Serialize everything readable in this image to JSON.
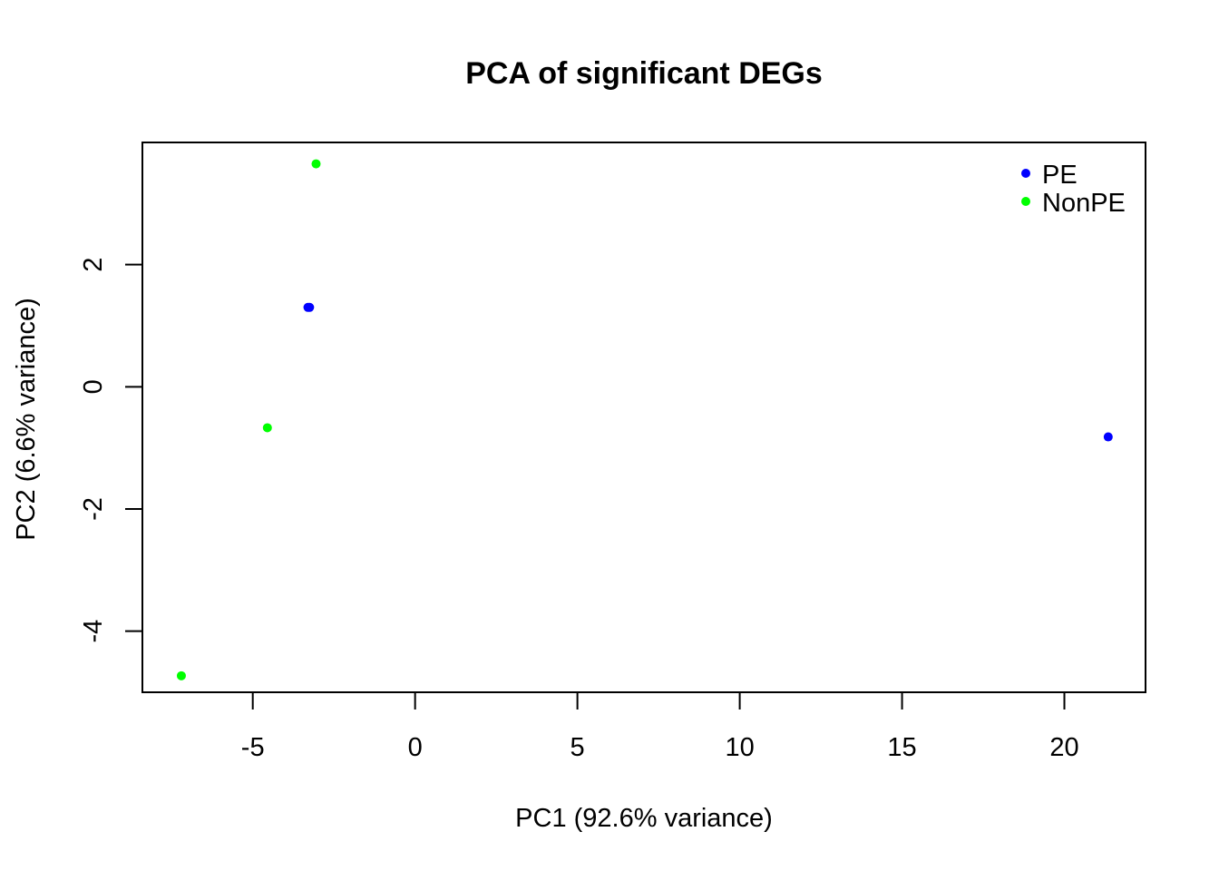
{
  "chart_data": {
    "type": "scatter",
    "title": "PCA of significant DEGs",
    "xlabel": "PC1 (92.6% variance)",
    "ylabel": "PC2 (6.6% variance)",
    "xlim": [
      -8.4,
      22.5
    ],
    "ylim": [
      -5.0,
      4.0
    ],
    "xticks": [
      -5,
      0,
      5,
      10,
      15,
      20
    ],
    "yticks": [
      -4,
      -2,
      0,
      2
    ],
    "grid": false,
    "legend_position": "top-right",
    "series": [
      {
        "name": "PE",
        "color": "#0000FF",
        "points": [
          {
            "x": -3.3,
            "y": 1.3
          },
          {
            "x": -3.25,
            "y": 1.3
          },
          {
            "x": 21.35,
            "y": -0.82
          }
        ]
      },
      {
        "name": "NonPE",
        "color": "#00FF00",
        "points": [
          {
            "x": -3.05,
            "y": 3.65
          },
          {
            "x": -4.55,
            "y": -0.67
          },
          {
            "x": -7.2,
            "y": -4.73
          }
        ]
      }
    ]
  }
}
